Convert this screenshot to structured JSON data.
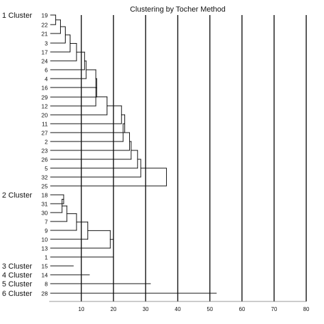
{
  "chart_data": {
    "type": "dendrogram",
    "title": "Clustering by Tocher Method",
    "xlim": [
      0,
      80
    ],
    "x_ticks": [
      "10",
      "20",
      "30",
      "40",
      "50",
      "60",
      "70",
      "80"
    ],
    "vertical_gridlines": true,
    "leaf_order": [
      "19",
      "22",
      "21",
      "3",
      "17",
      "24",
      "6",
      "4",
      "16",
      "29",
      "12",
      "20",
      "11",
      "27",
      "2",
      "23",
      "26",
      "5",
      "32",
      "25",
      "18",
      "31",
      "30",
      "7",
      "9",
      "10",
      "13",
      "1",
      "15",
      "14",
      "8",
      "28"
    ],
    "clusters": [
      {
        "label": "1 Cluster",
        "leaves": [
          "19",
          "22",
          "21",
          "3",
          "17",
          "24",
          "6",
          "4",
          "16",
          "29",
          "12",
          "20",
          "11",
          "27",
          "2",
          "23",
          "26",
          "5",
          "32",
          "25"
        ],
        "merge_heights": [
          2,
          3.5,
          5,
          6.5,
          8.5,
          11,
          11.5,
          14.5,
          14.8,
          14.5,
          18,
          22.5,
          23.5,
          23,
          25,
          25.5,
          27.5,
          28.5,
          36.5
        ]
      },
      {
        "label": "2 Cluster",
        "leaves": [
          "18",
          "31",
          "30",
          "7",
          "9",
          "10",
          "13",
          "1"
        ],
        "merge_heights": [
          4.5,
          4,
          5.5,
          8.5,
          12,
          19,
          20
        ]
      },
      {
        "label": "3 Cluster",
        "leaves": [
          "15"
        ],
        "line_end": 7.5
      },
      {
        "label": "4 Cluster",
        "leaves": [
          "14"
        ],
        "line_end": 12.5
      },
      {
        "label": "5 Cluster",
        "leaves": [
          "8"
        ],
        "line_end": 31.5
      },
      {
        "label": "6 Cluster",
        "leaves": [
          "28"
        ],
        "line_end": 52
      }
    ]
  }
}
